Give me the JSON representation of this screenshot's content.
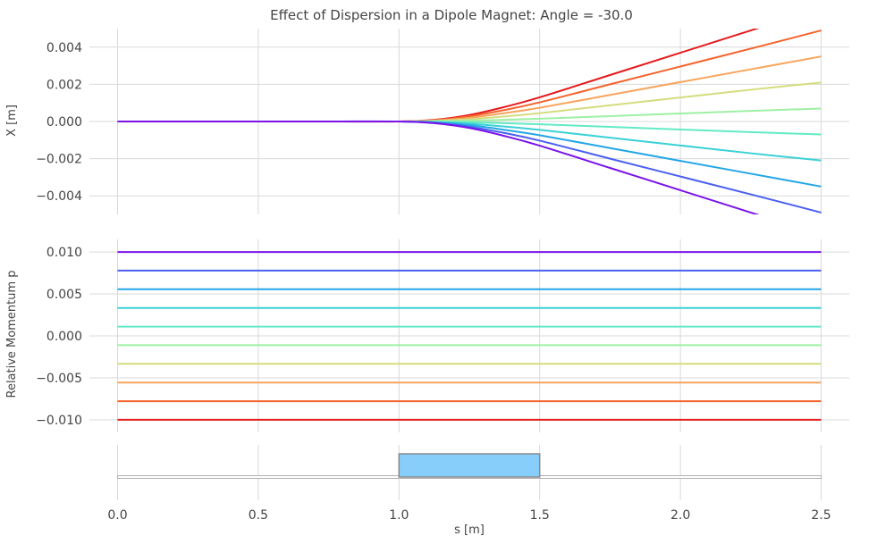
{
  "chart_data": [
    {
      "type": "line",
      "title": "Effect of Dispersion in a Dipole Magnet: Angle = -30.0",
      "xlabel": "",
      "ylabel": "X [m]",
      "xlim": [
        -0.1,
        2.6
      ],
      "ylim": [
        -0.005,
        0.005
      ],
      "grid": true,
      "yticks": [
        "0.004",
        "0.002",
        "0.000",
        "−0.002",
        "−0.004"
      ],
      "ytick_values": [
        0.004,
        0.002,
        0.0,
        -0.002,
        -0.004
      ],
      "x_samples": [
        0.0,
        0.25,
        0.5,
        0.75,
        1.0,
        1.125,
        1.25,
        1.375,
        1.5,
        1.75,
        2.0,
        2.25,
        2.5
      ],
      "series": [
        {
          "color": "#e41a1c",
          "values": [
            0,
            0,
            0,
            0,
            0,
            9e-05,
            0.00035,
            0.00078,
            0.0013,
            0.0025,
            0.0037,
            0.0049,
            0.0061
          ]
        },
        {
          "color": "#f4632b",
          "values": [
            0,
            0,
            0,
            0,
            0,
            7e-05,
            0.00028,
            0.00062,
            0.00103,
            0.002,
            0.00296,
            0.00392,
            0.0049
          ]
        },
        {
          "color": "#f8a45c",
          "values": [
            0,
            0,
            0,
            0,
            0,
            5e-05,
            0.0002,
            0.00045,
            0.00074,
            0.00143,
            0.00212,
            0.00281,
            0.0035
          ]
        },
        {
          "color": "#d4dd7e",
          "values": [
            0,
            0,
            0,
            0,
            0,
            3e-05,
            0.00012,
            0.00027,
            0.00045,
            0.00087,
            0.00129,
            0.00171,
            0.0021
          ]
        },
        {
          "color": "#9ef0a4",
          "values": [
            0,
            0,
            0,
            0,
            0,
            1e-05,
            4e-05,
            9e-05,
            0.00015,
            0.00029,
            0.00043,
            0.00057,
            0.0007
          ]
        },
        {
          "color": "#63eac5",
          "values": [
            0,
            0,
            0,
            0,
            0,
            -1e-05,
            -4e-05,
            -9e-05,
            -0.00015,
            -0.00029,
            -0.00043,
            -0.00057,
            -0.0007
          ]
        },
        {
          "color": "#3ad1d6",
          "values": [
            0,
            0,
            0,
            0,
            0,
            -3e-05,
            -0.00012,
            -0.00027,
            -0.00045,
            -0.00087,
            -0.00129,
            -0.00171,
            -0.0021
          ]
        },
        {
          "color": "#23a6e6",
          "values": [
            0,
            0,
            0,
            0,
            0,
            -5e-05,
            -0.0002,
            -0.00045,
            -0.00074,
            -0.00143,
            -0.00212,
            -0.00281,
            -0.0035
          ]
        },
        {
          "color": "#4a5ff0",
          "values": [
            0,
            0,
            0,
            0,
            0,
            -7e-05,
            -0.00028,
            -0.00062,
            -0.00103,
            -0.002,
            -0.00296,
            -0.00392,
            -0.0049
          ]
        },
        {
          "color": "#7a13e8",
          "values": [
            0,
            0,
            0,
            0,
            0,
            -9e-05,
            -0.00035,
            -0.00078,
            -0.0013,
            -0.0025,
            -0.0037,
            -0.0049,
            -0.0061
          ]
        }
      ]
    },
    {
      "type": "line",
      "title": "",
      "xlabel": "",
      "ylabel": "Relative Momentum p",
      "xlim": [
        -0.1,
        2.6
      ],
      "ylim": [
        -0.0115,
        0.0115
      ],
      "grid": true,
      "yticks": [
        "0.010",
        "0.005",
        "0.000",
        "−0.005",
        "−0.010"
      ],
      "ytick_values": [
        0.01,
        0.005,
        0.0,
        -0.005,
        -0.01
      ],
      "x": [
        0.0,
        2.5
      ],
      "series": [
        {
          "color": "#7a13e8",
          "value": 0.01
        },
        {
          "color": "#4a5ff0",
          "value": 0.00778
        },
        {
          "color": "#23a6e6",
          "value": 0.00556
        },
        {
          "color": "#3ad1d6",
          "value": 0.00333
        },
        {
          "color": "#63eac5",
          "value": 0.00111
        },
        {
          "color": "#9ef0a4",
          "value": -0.00111
        },
        {
          "color": "#d4dd7e",
          "value": -0.00333
        },
        {
          "color": "#f8a45c",
          "value": -0.00556
        },
        {
          "color": "#f4632b",
          "value": -0.00778
        },
        {
          "color": "#e41a1c",
          "value": -0.01
        }
      ]
    },
    {
      "type": "bar",
      "title": "",
      "xlabel": "s [m]",
      "ylabel": "",
      "xlim": [
        -0.1,
        2.6
      ],
      "grid": true,
      "xticks": [
        "0.0",
        "0.5",
        "1.0",
        "1.5",
        "2.0",
        "2.5"
      ],
      "xtick_values": [
        0.0,
        0.5,
        1.0,
        1.5,
        2.0,
        2.5
      ],
      "beamline": [
        0.0,
        2.5
      ],
      "elements": [
        {
          "start": 1.0,
          "end": 1.5,
          "color": "#87cefa"
        }
      ]
    }
  ]
}
